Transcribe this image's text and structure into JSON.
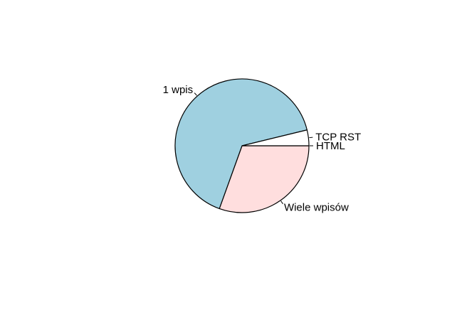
{
  "chart_data": {
    "type": "pie",
    "title": "",
    "slices": [
      {
        "label": "HTML",
        "value": 0.0,
        "color": "#ffffff"
      },
      {
        "label": "Wiele wpisów",
        "value": 30.5,
        "color": "#ffdede"
      },
      {
        "label": "1 wpis",
        "value": 65.7,
        "color": "#9fd0e0"
      },
      {
        "label": "TCP RST",
        "value": 3.8,
        "color": "#ffffff"
      }
    ],
    "start_angle_deg": 0,
    "direction": "clockwise",
    "border_color": "#000000"
  }
}
